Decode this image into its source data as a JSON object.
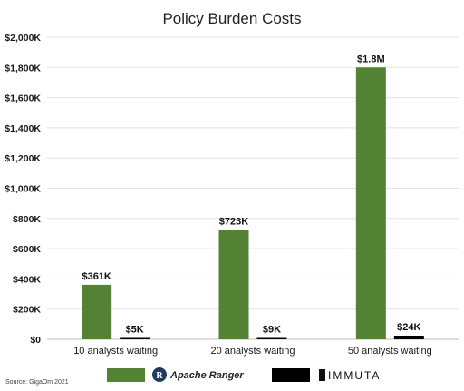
{
  "chart_data": {
    "type": "bar",
    "title": "Policy Burden Costs",
    "categories": [
      "10 analysts waiting",
      "20 analysts waiting",
      "50 analysts waiting"
    ],
    "series": [
      {
        "name": "Apache Ranger",
        "color": "#548235",
        "values": [
          361,
          723,
          1800
        ],
        "labels": [
          "$361K",
          "$723K",
          "$1.8M"
        ]
      },
      {
        "name": "IMMUTA",
        "color": "#000000",
        "values": [
          5,
          9,
          24
        ],
        "labels": [
          "$5K",
          "$9K",
          "$24K"
        ]
      }
    ],
    "ylim": [
      0,
      2000
    ],
    "yticks": [
      0,
      200,
      400,
      600,
      800,
      1000,
      1200,
      1400,
      1600,
      1800,
      2000
    ],
    "ytick_labels": [
      "$0",
      "$200K",
      "$400K",
      "$600K",
      "$800K",
      "$1,000K",
      "$1,200K",
      "$1,400K",
      "$1,600K",
      "$1,800K",
      "$2,000K"
    ],
    "grid": true,
    "legend_position": "bottom",
    "source": "Source: GigaOm 2021"
  }
}
